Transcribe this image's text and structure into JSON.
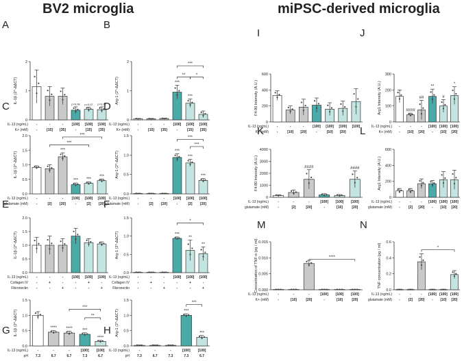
{
  "headers": {
    "left": "BV2 microglia",
    "right": "miPSC-derived microglia"
  },
  "colors": {
    "white": "#ffffff",
    "gray": "#c9c9c9",
    "teal": "#4aaaa8",
    "lightteal": "#c3e5e1",
    "edge": "#333333",
    "dot": "#444444"
  },
  "chart_data": [
    {
      "panel": "A",
      "type": "bar",
      "title": "",
      "xlabel": "",
      "ylabel": "IL-1β (2^-ΔΔCT)",
      "ylim": [
        0,
        2.1
      ],
      "yticks": [
        "0",
        "1",
        "2"
      ],
      "values": [
        1.2,
        0.85,
        0.85,
        0.35,
        0.38,
        0.37
      ],
      "errors": [
        0.6,
        0.35,
        0.3,
        0.12,
        0.08,
        0.1
      ],
      "colors": [
        "white",
        "gray",
        "gray",
        "teal",
        "lightteal",
        "lightteal"
      ],
      "stars": [
        "",
        "",
        "",
        "p=0.08",
        "p=0.07",
        "p=0.08"
      ],
      "rows": [
        {
          "label": "IL-13 (ng/mL)",
          "values": [
            "-",
            "-",
            "-",
            "[100]",
            "[100]",
            "[100]"
          ]
        },
        {
          "label": "K+ (mM)",
          "values": [
            "-",
            "[15]",
            "[35]",
            "-",
            "[15]",
            "[35]"
          ]
        }
      ],
      "brackets": []
    },
    {
      "panel": "B",
      "type": "bar",
      "title": "",
      "xlabel": "",
      "ylabel": "Arg-1 (2^-ΔΔCT)",
      "ylim": [
        0,
        2.1
      ],
      "yticks": [
        "0",
        "1",
        "2"
      ],
      "values": [
        0.04,
        0.04,
        0.05,
        1.0,
        0.6,
        0.2
      ],
      "errors": [
        0.01,
        0.01,
        0.01,
        0.25,
        0.15,
        0.12
      ],
      "colors": [
        "white",
        "gray",
        "gray",
        "teal",
        "lightteal",
        "lightteal"
      ],
      "stars": [
        "",
        "",
        "",
        "***",
        "***",
        ""
      ],
      "rows": [
        {
          "label": "IL-13 (ng/mL)",
          "values": [
            "-",
            "-",
            "-",
            "[100]",
            "[100]",
            "[100]"
          ]
        },
        {
          "label": "K+ (mM)",
          "values": [
            "-",
            "[15]",
            "[35]",
            "-",
            "[15]",
            "[35]"
          ]
        }
      ],
      "brackets": [
        {
          "from": 3,
          "to": 5,
          "level": 1.95,
          "label": "***"
        },
        {
          "from": 3,
          "to": 4,
          "level": 1.55,
          "label": "**"
        },
        {
          "from": 4,
          "to": 5,
          "level": 1.55,
          "label": "*"
        }
      ]
    },
    {
      "panel": "C",
      "type": "bar",
      "title": "",
      "xlabel": "",
      "ylabel": "IL-1β (2^-ΔΔCT)",
      "ylim": [
        0,
        2.2
      ],
      "yticks": [
        "0.0",
        "0.5",
        "1.0",
        "1.5",
        "2.0"
      ],
      "values": [
        1.0,
        0.95,
        1.4,
        0.35,
        0.4,
        0.5
      ],
      "errors": [
        0.06,
        0.15,
        0.15,
        0.06,
        0.05,
        0.06
      ],
      "colors": [
        "white",
        "gray",
        "gray",
        "teal",
        "lightteal",
        "lightteal"
      ],
      "stars": [
        "",
        "",
        "***",
        "***",
        "***",
        "***"
      ],
      "rows": [
        {
          "label": "IL-13 (ng/mL)",
          "values": [
            "-",
            "-",
            "-",
            "[100]",
            "[100]",
            "[100]"
          ]
        },
        {
          "label": "glutamate (mM)",
          "values": [
            "-",
            "[2]",
            "[20]",
            "-",
            "[2]",
            "[20]"
          ]
        }
      ],
      "brackets": [
        {
          "from": 2,
          "to": 5,
          "level": 2.15,
          "label": "***"
        },
        {
          "from": 1,
          "to": 4,
          "level": 1.85,
          "label": "***"
        }
      ]
    },
    {
      "panel": "D",
      "type": "bar",
      "title": "",
      "xlabel": "",
      "ylabel": "Arg-1 (2^-ΔΔCT)",
      "ylim": [
        0,
        1.6
      ],
      "yticks": [
        "0.0",
        "0.5",
        "1.0",
        "1.5"
      ],
      "values": [
        0.01,
        0.01,
        0.01,
        1.0,
        0.85,
        0.37
      ],
      "errors": [
        0.005,
        0.005,
        0.005,
        0.1,
        0.1,
        0.05
      ],
      "colors": [
        "white",
        "gray",
        "gray",
        "teal",
        "lightteal",
        "lightteal"
      ],
      "stars": [
        "",
        "",
        "",
        "***",
        "***",
        "***"
      ],
      "rows": [
        {
          "label": "IL-13 (ng/mL)",
          "values": [
            "-",
            "-",
            "-",
            "[100]",
            "[100]",
            "[100]"
          ]
        },
        {
          "label": "glutamate (mM)",
          "values": [
            "-",
            "[2]",
            "[20]",
            "-",
            "[2]",
            "[20]"
          ]
        }
      ],
      "brackets": [
        {
          "from": 3,
          "to": 5,
          "level": 1.5,
          "label": "***"
        },
        {
          "from": 4,
          "to": 5,
          "level": 1.3,
          "label": "***"
        }
      ]
    },
    {
      "panel": "E",
      "type": "bar",
      "title": "",
      "xlabel": "",
      "ylabel": "IL-1β (2^-ΔΔCT)",
      "ylim": [
        0,
        2.1
      ],
      "yticks": [
        "0.0",
        "0.5",
        "1.0",
        "1.5",
        "2.0"
      ],
      "values": [
        1.05,
        1.05,
        1.05,
        1.4,
        1.15,
        1.1
      ],
      "errors": [
        0.3,
        0.35,
        0.25,
        0.3,
        0.15,
        0.08
      ],
      "colors": [
        "white",
        "gray",
        "gray",
        "teal",
        "lightteal",
        "lightteal"
      ],
      "stars": [
        "",
        "",
        "",
        "",
        "",
        ""
      ],
      "rows": [
        {
          "label": "IL-13 (ng/mL)",
          "values": [
            "-",
            "-",
            "-",
            "[100]",
            "[100]",
            "[100]"
          ]
        },
        {
          "label": "Collagen IV",
          "values": [
            "-",
            "+",
            "-",
            "-",
            "+",
            "-"
          ]
        },
        {
          "label": "Fibronectin",
          "values": [
            "-",
            "-",
            "+",
            "-",
            "-",
            "+"
          ]
        }
      ],
      "brackets": []
    },
    {
      "panel": "F",
      "type": "bar",
      "title": "",
      "xlabel": "",
      "ylabel": "Arg-1 (2^-ΔΔCT)",
      "ylim": [
        0,
        1.6
      ],
      "yticks": [
        "0.0",
        "0.5",
        "1.0",
        "1.5"
      ],
      "values": [
        0.01,
        0.01,
        0.01,
        1.0,
        0.65,
        0.55
      ],
      "errors": [
        0.005,
        0.005,
        0.005,
        0.04,
        0.3,
        0.2
      ],
      "colors": [
        "white",
        "gray",
        "gray",
        "teal",
        "lightteal",
        "lightteal"
      ],
      "stars": [
        "",
        "",
        "",
        "***",
        "**",
        "**"
      ],
      "rows": [
        {
          "label": "IL-13 (ng/mL)",
          "values": [
            "-",
            "-",
            "-",
            "[100]",
            "[100]",
            "[100]"
          ]
        },
        {
          "label": "Collagen IV",
          "values": [
            "-",
            "+",
            "-",
            "-",
            "+",
            "-"
          ]
        },
        {
          "label": "Fibronectin",
          "values": [
            "-",
            "-",
            "+",
            "-",
            "-",
            "+"
          ]
        }
      ],
      "brackets": [
        {
          "from": 3,
          "to": 5,
          "level": 1.45,
          "label": "*"
        }
      ]
    },
    {
      "panel": "G",
      "type": "bar",
      "title": "",
      "xlabel": "",
      "ylabel": "IL-1β (2^-ΔΔCT)",
      "ylim": [
        0,
        1.5
      ],
      "yticks": [
        "0.0",
        "0.5",
        "1.0",
        "1.5"
      ],
      "values": [
        1.0,
        0.45,
        0.42,
        0.38,
        0.15
      ],
      "errors": [
        0.12,
        0.05,
        0.06,
        0.05,
        0.03
      ],
      "colors": [
        "white",
        "gray",
        "gray",
        "teal",
        "lightteal"
      ],
      "stars": [
        "",
        "****",
        "****",
        "***",
        "****"
      ],
      "rows": [
        {
          "label": "IL-13 (ng/mL)",
          "values": [
            "-",
            "-",
            "-",
            "[100]",
            "[100]"
          ]
        },
        {
          "label": "pH",
          "values": [
            "7.3",
            "6.7",
            "6.7",
            "7.3",
            "6.7"
          ]
        }
      ],
      "brackets": [
        {
          "from": 2,
          "to": 4,
          "level": 1.2,
          "label": "***"
        },
        {
          "from": 3,
          "to": 4,
          "level": 0.92,
          "label": "**"
        }
      ]
    },
    {
      "panel": "H",
      "type": "bar",
      "title": "",
      "xlabel": "",
      "ylabel": "Arg-1 (2^-ΔΔCT)",
      "ylim": [
        0,
        1.5
      ],
      "yticks": [
        "0.0",
        "0.5",
        "1.0",
        "1.5"
      ],
      "values": [
        0.02,
        0.02,
        0.02,
        1.0,
        0.28
      ],
      "errors": [
        0.01,
        0.01,
        0.01,
        0.05,
        0.06
      ],
      "colors": [
        "white",
        "gray",
        "gray",
        "teal",
        "lightteal"
      ],
      "stars": [
        "",
        "",
        "",
        "***",
        "***"
      ],
      "rows": [
        {
          "label": "IL-13 (ng/mL)",
          "values": [
            "-",
            "-",
            "-",
            "[100]",
            "[100]"
          ]
        },
        {
          "label": "pH",
          "values": [
            "7.3",
            "6.7",
            "7.3",
            "7.3",
            "6.7"
          ]
        }
      ],
      "brackets": [
        {
          "from": 3,
          "to": 4,
          "level": 1.35,
          "label": "***"
        }
      ]
    },
    {
      "panel": "I",
      "type": "bar",
      "title": "",
      "xlabel": "",
      "ylabel": "F4-80 Intensity (A.U.)",
      "ylim": [
        0,
        600
      ],
      "yticks": [
        "0",
        "200",
        "400",
        "600"
      ],
      "values": [
        330,
        150,
        185,
        210,
        160,
        170,
        255
      ],
      "errors": [
        60,
        50,
        100,
        90,
        80,
        90,
        160
      ],
      "colors": [
        "white",
        "gray",
        "gray",
        "teal",
        "lightteal",
        "lightteal",
        "lightteal"
      ],
      "stars": [
        "",
        "",
        "",
        "",
        "",
        "",
        ""
      ],
      "rows": [
        {
          "label": "IL-13 (ng/mL)",
          "values": [
            "-",
            "-",
            "-",
            "[100]",
            "[100]",
            "[100]",
            "[100]"
          ]
        },
        {
          "label": "K+ (mM)",
          "values": [
            "-",
            "[10]",
            "[20]",
            "-",
            "[10]",
            "[20]",
            ""
          ]
        }
      ],
      "brackets": []
    },
    {
      "panel": "J",
      "type": "bar",
      "title": "",
      "xlabel": "",
      "ylabel": "Arg1 Intensity (A.U.)",
      "ylim": [
        0,
        300
      ],
      "yticks": [
        "0",
        "100",
        "200",
        "300"
      ],
      "values": [
        160,
        45,
        75,
        160,
        100,
        165
      ],
      "errors": [
        40,
        10,
        60,
        45,
        40,
        55
      ],
      "colors": [
        "white",
        "gray",
        "gray",
        "teal",
        "lightteal",
        "lightteal"
      ],
      "stars": [
        "",
        "####",
        "##",
        "**",
        "#",
        "*"
      ],
      "rows": [
        {
          "label": "IL-13 (ng/mL)",
          "values": [
            "-",
            "-",
            "-",
            "[100]",
            "[100]",
            "[100]"
          ]
        },
        {
          "label": "K+ (mM)",
          "values": [
            "-",
            "[10]",
            "[20]",
            "-",
            "[10]",
            "[20]"
          ]
        }
      ],
      "brackets": []
    },
    {
      "panel": "K",
      "type": "bar",
      "title": "",
      "xlabel": "",
      "ylabel": "F4-80 Intensity (A.U.)",
      "ylim": [
        0,
        4000
      ],
      "yticks": [
        "0",
        "1000",
        "2000",
        "3000",
        "4000"
      ],
      "values": [
        150,
        400,
        1500,
        200,
        150,
        1500
      ],
      "errors": [
        60,
        200,
        800,
        100,
        80,
        700
      ],
      "colors": [
        "white",
        "gray",
        "gray",
        "teal",
        "lightteal",
        "lightteal"
      ],
      "stars": [
        "",
        "",
        "####",
        "",
        "",
        "####"
      ],
      "rows": [
        {
          "label": "IL-13 (ng/mL)",
          "values": [
            "-",
            "-",
            "-",
            "[100]",
            "[100]",
            "[100]"
          ]
        },
        {
          "label": "glutamate (mM)",
          "values": [
            "-",
            "[2]",
            "[20]",
            "-",
            "[10]",
            "[20]"
          ]
        }
      ],
      "brackets": []
    },
    {
      "panel": "L",
      "type": "bar",
      "title": "",
      "xlabel": "",
      "ylabel": "Arg1 Intensity (A.U.)",
      "ylim": [
        0,
        600
      ],
      "yticks": [
        "0",
        "200",
        "400",
        "600"
      ],
      "values": [
        80,
        80,
        170,
        170,
        220,
        220
      ],
      "errors": [
        30,
        30,
        60,
        40,
        100,
        120
      ],
      "colors": [
        "white",
        "gray",
        "gray",
        "teal",
        "lightteal",
        "lightteal"
      ],
      "stars": [
        "",
        "",
        "",
        "",
        "",
        ""
      ],
      "rows": [
        {
          "label": "IL-13 (ng/mL)",
          "values": [
            "-",
            "-",
            "-",
            "[100]",
            "[100]",
            "[100]"
          ]
        },
        {
          "label": "glutamate (mM)",
          "values": [
            "-",
            "[2]",
            "[20]",
            "-",
            "[10]",
            "[20]"
          ]
        }
      ],
      "brackets": []
    },
    {
      "panel": "M",
      "type": "bar",
      "title": "",
      "xlabel": "",
      "ylabel": "Concentration of TNF-α (pg / ml)",
      "ylim": [
        0,
        0.015
      ],
      "yticks": [
        "0.000",
        "0.005",
        "0.010",
        "0.015"
      ],
      "values": [
        0.0001,
        0.0001,
        0.0082,
        0.0001,
        0.0001,
        0.0001
      ],
      "errors": [
        0,
        0,
        0.001,
        0,
        0,
        0
      ],
      "colors": [
        "white",
        "gray",
        "gray",
        "teal",
        "lightteal",
        "lightteal"
      ],
      "stars": [
        "",
        "",
        "",
        "",
        "",
        ""
      ],
      "rows": [
        {
          "label": "IL-13 (ng/mL)",
          "values": [
            "-",
            "-",
            "-",
            "[100]",
            "[100]",
            "[100]"
          ]
        },
        {
          "label": "K+ (mM)",
          "values": [
            "-",
            "[10]",
            "[20]",
            "-",
            "[10]",
            "[20]"
          ]
        }
      ],
      "brackets": [
        {
          "from": 2,
          "to": 5,
          "level": 0.0095,
          "label": "****"
        }
      ]
    },
    {
      "panel": "N",
      "type": "bar",
      "title": "",
      "xlabel": "",
      "ylabel": "TNF concentration (pg / ml)",
      "ylim": [
        0,
        0.6
      ],
      "yticks": [
        "0.0",
        "0.2",
        "0.4",
        "0.6"
      ],
      "values": [
        0.003,
        0.003,
        0.35,
        0.003,
        0.003,
        0.19
      ],
      "errors": [
        0,
        0,
        0.1,
        0,
        0,
        0.05
      ],
      "colors": [
        "white",
        "gray",
        "gray",
        "teal",
        "lightteal",
        "lightteal"
      ],
      "stars": [
        "",
        "",
        "",
        "",
        "",
        ""
      ],
      "rows": [
        {
          "label": "IL-13 (ng/mL)",
          "values": [
            "-",
            "-",
            "-",
            "[100]",
            "[100]",
            "[100]"
          ]
        },
        {
          "label": "glutamate (mM)",
          "values": [
            "-",
            "[2]",
            "[20]",
            "-",
            "[10]",
            "[20]"
          ]
        }
      ],
      "brackets": [
        {
          "from": 2,
          "to": 5,
          "level": 0.5,
          "label": "*"
        }
      ]
    }
  ]
}
